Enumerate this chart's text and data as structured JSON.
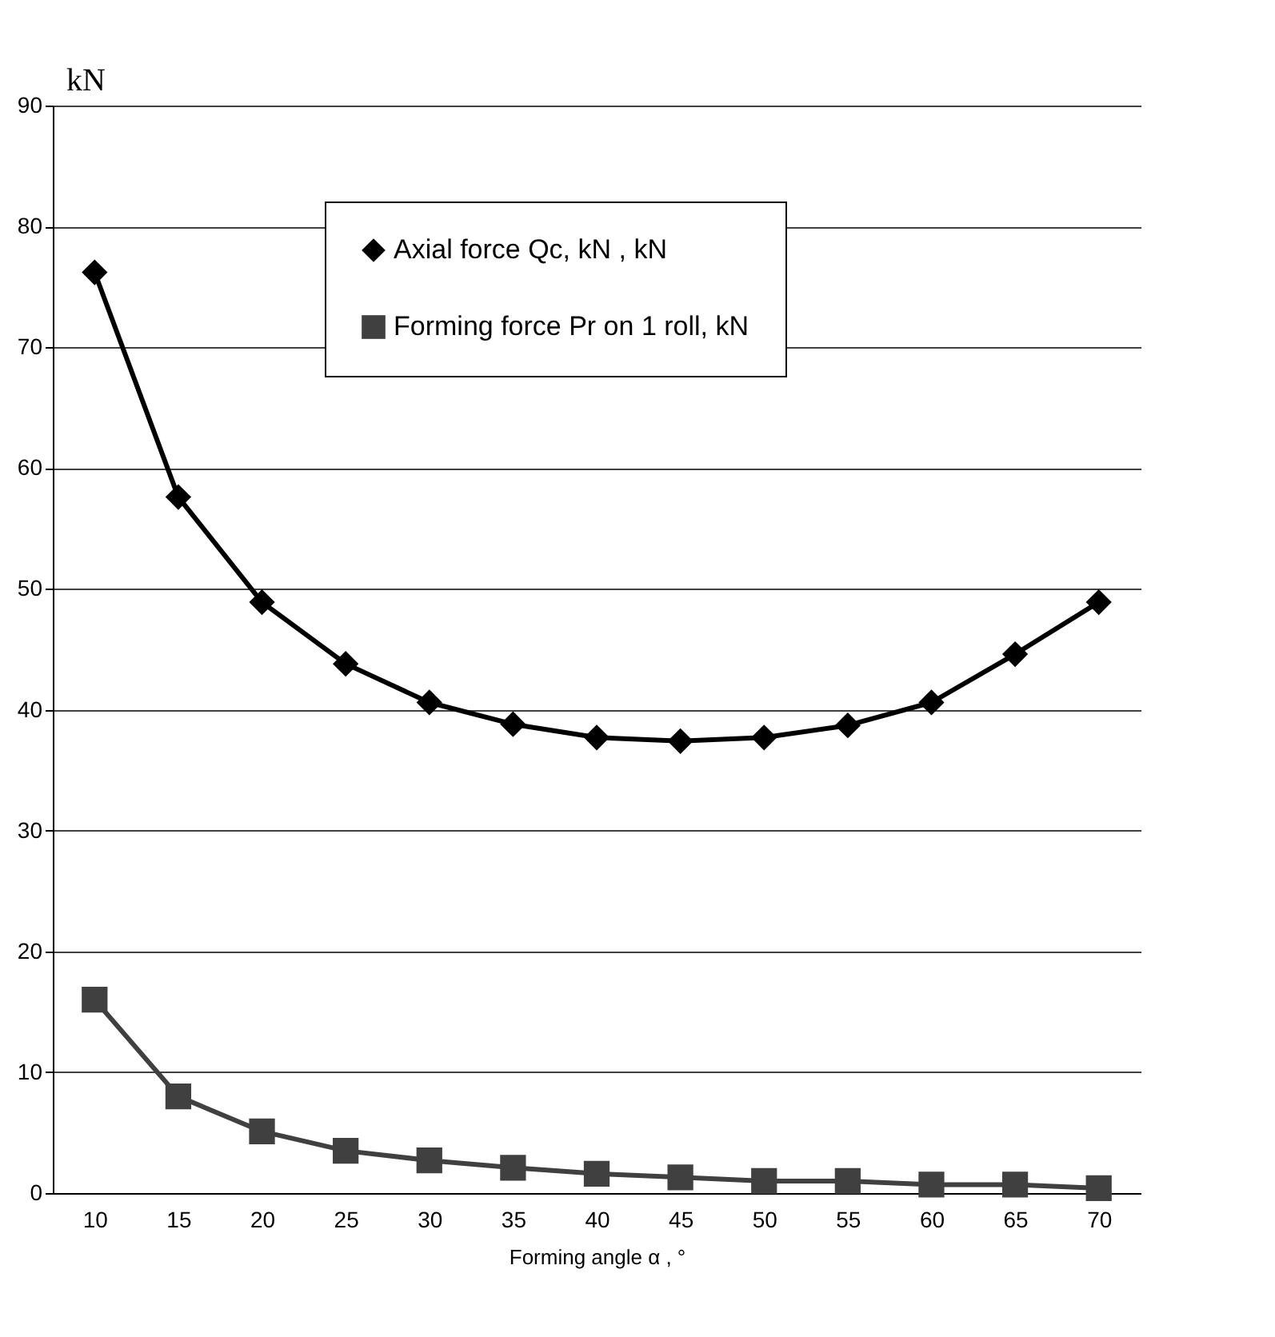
{
  "chart_data": {
    "type": "line",
    "xlabel": "Forming angle  α , °",
    "ylabel": "kN",
    "categories": [
      "10",
      "15",
      "20",
      "25",
      "30",
      "35",
      "40",
      "45",
      "50",
      "55",
      "60",
      "65",
      "70"
    ],
    "series": [
      {
        "name": "Axial force Qc, kN  , kN",
        "color": "#000000",
        "marker": "diamond",
        "values": [
          76.2,
          57.6,
          48.9,
          43.8,
          40.6,
          38.8,
          37.7,
          37.4,
          37.7,
          38.7,
          40.6,
          44.6,
          48.9
        ]
      },
      {
        "name": "Forming force Pr on 1 roll, kN",
        "color": "#404040",
        "marker": "square",
        "values": [
          16.0,
          8.0,
          5.1,
          3.5,
          2.7,
          2.1,
          1.6,
          1.3,
          1.0,
          1.0,
          0.7,
          0.7,
          0.4
        ]
      }
    ],
    "ylim": [
      0,
      90
    ],
    "yticks": [
      0,
      10,
      20,
      30,
      40,
      50,
      60,
      70,
      80,
      90
    ],
    "grid": "y",
    "legend": "top",
    "line_style": "solid"
  }
}
